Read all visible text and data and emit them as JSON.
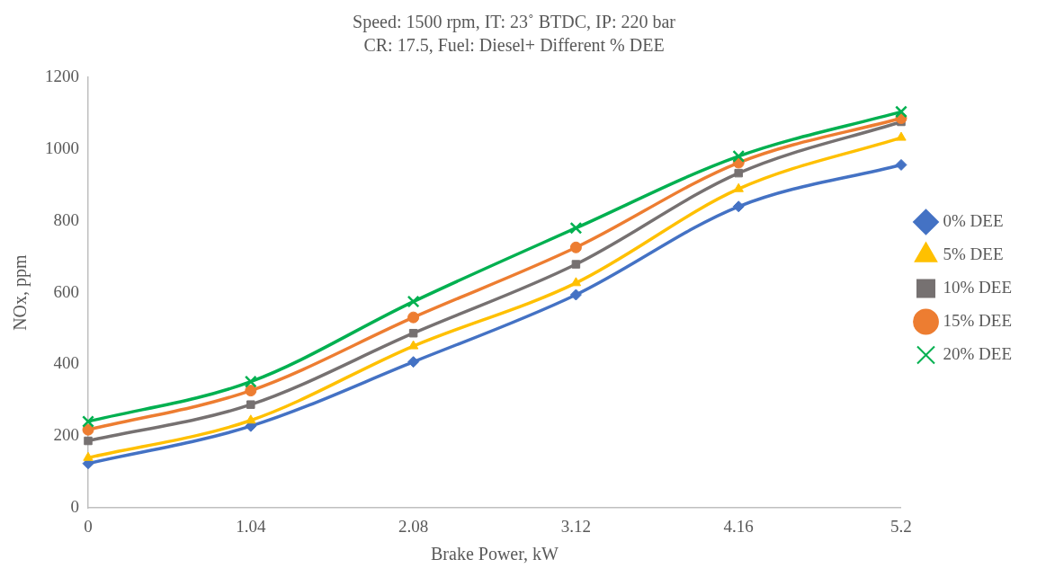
{
  "chart_data": {
    "type": "line",
    "title": "Speed: 1500 rpm, IT: 23˚ BTDC, IP: 220 bar",
    "subtitle": "CR: 17.5, Fuel: Diesel+ Different % DEE",
    "xlabel": "Brake Power, kW",
    "ylabel": "NOx, ppm",
    "categories": [
      "0",
      "1.04",
      "2.08",
      "3.12",
      "4.16",
      "5.2"
    ],
    "series": [
      {
        "name": "0% DEE",
        "color": "#4472c4",
        "marker": "diamond",
        "values": [
          124,
          228,
          407,
          594,
          840,
          956
        ]
      },
      {
        "name": "5% DEE",
        "color": "#ffc000",
        "marker": "triangle",
        "values": [
          140,
          244,
          451,
          627,
          889,
          1032
        ]
      },
      {
        "name": "10% DEE",
        "color": "#767171",
        "marker": "square",
        "values": [
          187,
          288,
          487,
          679,
          933,
          1076
        ]
      },
      {
        "name": "15% DEE",
        "color": "#ed7d31",
        "marker": "circle",
        "values": [
          218,
          327,
          531,
          726,
          962,
          1086
        ]
      },
      {
        "name": "20% DEE",
        "color": "#00b050",
        "marker": "cross",
        "values": [
          241,
          352,
          575,
          780,
          980,
          1104
        ]
      }
    ],
    "ylim": [
      0,
      1200
    ],
    "yticks": [
      0,
      200,
      400,
      600,
      800,
      1000,
      1200
    ],
    "grid": false,
    "legend": "right"
  }
}
